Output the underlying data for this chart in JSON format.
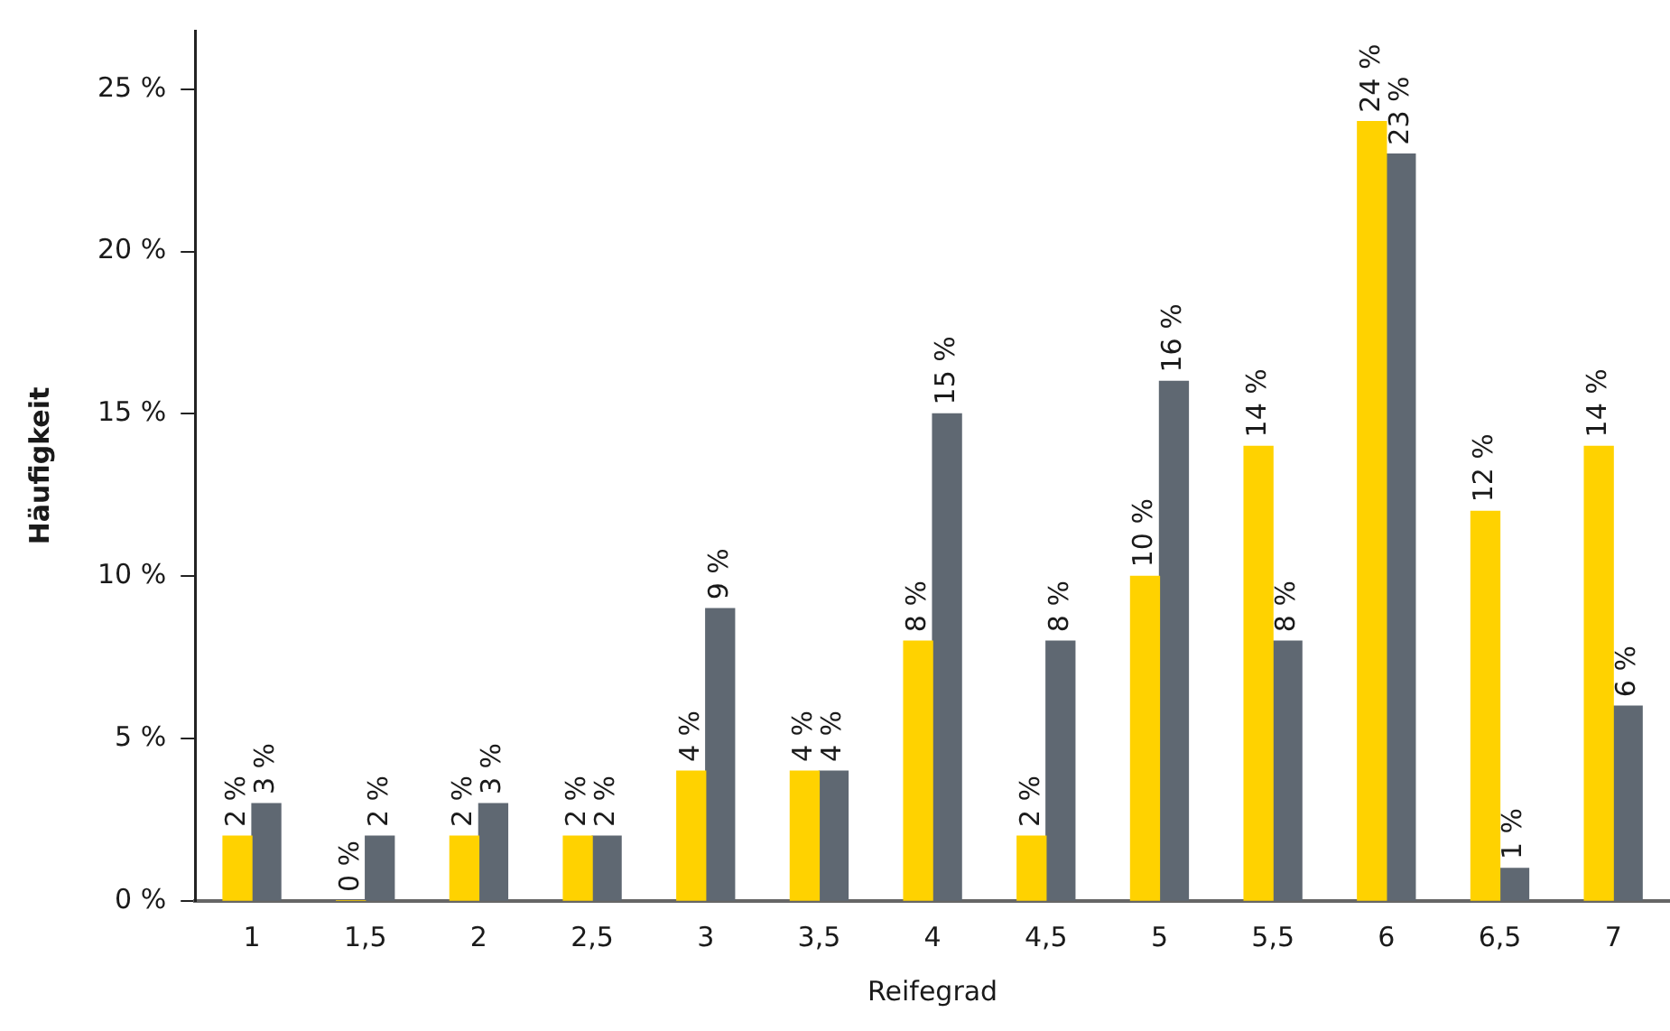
{
  "chart_data": {
    "type": "bar",
    "xlabel": "Reifegrad",
    "ylabel": "Häufigkeit",
    "categories": [
      "1",
      "1,5",
      "2",
      "2,5",
      "3",
      "3,5",
      "4",
      "4,5",
      "5",
      "5,5",
      "6",
      "6,5",
      "7"
    ],
    "series": [
      {
        "color": "#ffd200",
        "values": [
          2,
          0,
          2,
          2,
          4,
          4,
          8,
          2,
          10,
          14,
          24,
          12,
          14
        ],
        "value_labels": [
          "2 %",
          "0 %",
          "2 %",
          "2 %",
          "4 %",
          "4 %",
          "8 %",
          "2 %",
          "10 %",
          "14 %",
          "24 %",
          "12 %",
          "14 %"
        ]
      },
      {
        "color": "#5f6872",
        "values": [
          3,
          2,
          3,
          2,
          9,
          4,
          15,
          8,
          16,
          8,
          23,
          1,
          6
        ],
        "value_labels": [
          "3 %",
          "2 %",
          "3 %",
          "2 %",
          "9 %",
          "4 %",
          "15 %",
          "8 %",
          "16 %",
          "8 %",
          "23 %",
          "1 %",
          "6 %"
        ]
      }
    ],
    "ylim": [
      0,
      26.8
    ],
    "yticks": [
      {
        "value": 0,
        "label": "0 %"
      },
      {
        "value": 5,
        "label": "5 %"
      },
      {
        "value": 10,
        "label": "10 %"
      },
      {
        "value": 15,
        "label": "15 %"
      },
      {
        "value": 20,
        "label": "20 %"
      },
      {
        "value": 25,
        "label": "25 %"
      }
    ],
    "grid": false,
    "legend": false
  }
}
